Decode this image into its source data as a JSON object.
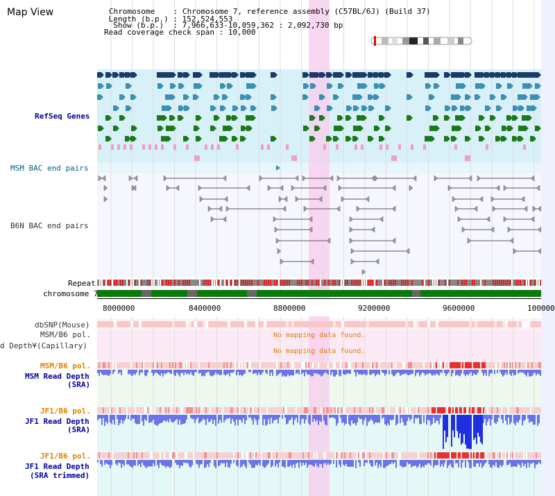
{
  "header": {
    "title": "Map View",
    "chromosome_line": "Chromosome    : Chromosome 7, reference assembly (C57BL/6J) (Build 37)",
    "length_line": " Length (b.p.) : 152,524,553",
    "show_line": "  Show (b.p.)  : 7,966,633-10,059,362 : 2,092,730 bp",
    "coverage_line": "Read coverage check span : 10,000"
  },
  "tracks": {
    "refseq": "RefSeq Genes",
    "msm_bac": "MSM BAC end pairs",
    "b6n_bac": "B6N BAC end pairs",
    "repeat": "Repeat",
    "chromosome": "chromosome 7",
    "dbsnp": "dbSNP(Mouse)",
    "msm_b6_pol_cap": "MSM/B6 pol.",
    "read_depth_cap": "d Depth¥(Capillary)",
    "msm_b6_pol": "MSM/B6 pol.",
    "msm_read_depth": "MSM Read Depth",
    "msm_read_depth_src": "(SRA)",
    "jf1_b6_pol": "JF1/B6 pol.",
    "jf1_read_depth": "JF1 Read Depth",
    "jf1_read_depth_src": "(SRA)",
    "jf1_b6_pol_2": "JF1/B6 pol.",
    "jf1_read_depth_2": "JF1 Read Depth",
    "jf1_read_depth_2_src": "(SRA trimmed)"
  },
  "no_data_1": "No mapping data found.",
  "no_data_2": "No mapping data found.",
  "axis": {
    "ticks": [
      "8000000",
      "8400000",
      "8800000",
      "9200000",
      "9600000",
      "100000"
    ]
  },
  "colors": {
    "refseq_bg": "#d8f0f8",
    "highlight": "#f8d0f0",
    "gene_dark": "#1a3a6a",
    "gene_teal": "#3c8fb0",
    "gene_green": "#1a7a1a",
    "pink": "#f0a0c0",
    "repeat_red": "#e02020",
    "chrom_green": "#0a7a0a"
  }
}
